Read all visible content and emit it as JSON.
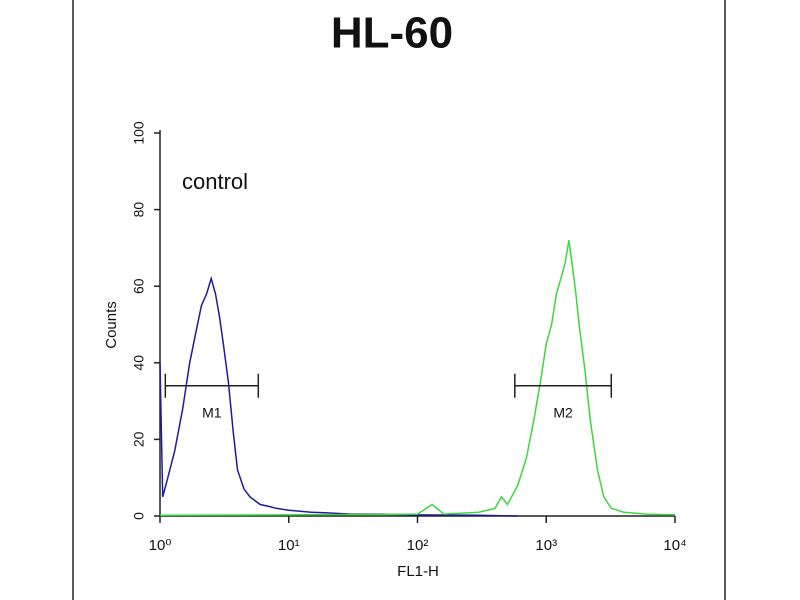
{
  "chart_data": {
    "type": "line",
    "title": "HL-60",
    "annotation": "control",
    "xlabel": "FL1-H",
    "ylabel": "Counts",
    "xscale": "log",
    "xlim": [
      1,
      10000
    ],
    "xticks": [
      {
        "value": 1,
        "label": "10⁰"
      },
      {
        "value": 10,
        "label": "10¹"
      },
      {
        "value": 100,
        "label": "10²"
      },
      {
        "value": 1000,
        "label": "10³"
      },
      {
        "value": 10000,
        "label": "10⁴"
      }
    ],
    "ylim": [
      0,
      100
    ],
    "yticks": [
      0,
      20,
      40,
      60,
      80,
      100
    ],
    "series": [
      {
        "color": "#1c1c9c",
        "x": [
          1,
          1.05,
          1.15,
          1.3,
          1.5,
          1.7,
          1.9,
          2.1,
          2.3,
          2.5,
          2.7,
          2.9,
          3.1,
          3.4,
          3.7,
          4,
          4.5,
          5,
          6,
          7,
          8,
          10,
          15,
          20,
          30,
          50,
          100,
          300,
          600
        ],
        "values": [
          40,
          5,
          10,
          17,
          28,
          40,
          48,
          55,
          58,
          62,
          58,
          52,
          45,
          35,
          22,
          12,
          7,
          5,
          3,
          2.5,
          2,
          1.5,
          1,
          0.8,
          0.5,
          0.5,
          0.3,
          0.2,
          0
        ]
      },
      {
        "color": "#3dd63d",
        "x": [
          1,
          10,
          100,
          130,
          160,
          300,
          400,
          450,
          500,
          600,
          700,
          800,
          900,
          1000,
          1100,
          1200,
          1300,
          1400,
          1500,
          1600,
          1700,
          1800,
          2000,
          2200,
          2500,
          2800,
          3200,
          4000,
          6000,
          10000
        ],
        "values": [
          0.2,
          0.3,
          0.5,
          3,
          0.5,
          1,
          2,
          5,
          3,
          8,
          15,
          25,
          35,
          45,
          50,
          58,
          62,
          66,
          72,
          65,
          58,
          50,
          38,
          25,
          12,
          5,
          2,
          1,
          0.5,
          0.3
        ]
      }
    ],
    "gates": [
      {
        "label": "M1",
        "x": [
          1.1,
          5.8
        ],
        "y": 34
      },
      {
        "label": "M2",
        "x": [
          570,
          3200
        ],
        "y": 34
      }
    ]
  }
}
